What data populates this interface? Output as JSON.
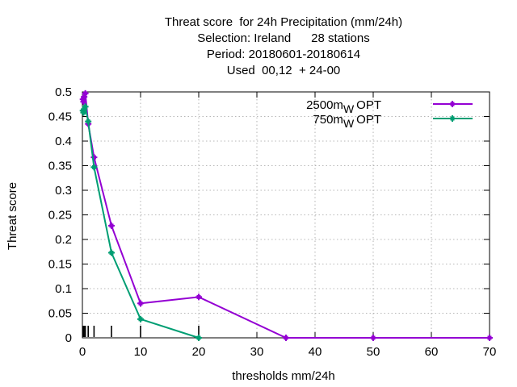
{
  "chart_data": {
    "type": "line",
    "title_lines": [
      "Threat score  for 24h Precipitation (mm/24h)",
      "Selection: Ireland      28 stations",
      "Period: 20180601-20180614",
      "Used  00,12  + 24-00"
    ],
    "xlabel": "thresholds mm/24h",
    "ylabel": "Threat score",
    "xlim": [
      0,
      70
    ],
    "ylim": [
      0,
      0.5
    ],
    "x_ticks": [
      0,
      10,
      20,
      30,
      40,
      50,
      60,
      70
    ],
    "x_tick_labels": [
      "0",
      "10",
      "20",
      "30",
      "40",
      "50",
      "60",
      "70"
    ],
    "y_ticks": [
      0,
      0.05,
      0.1,
      0.15,
      0.2,
      0.25,
      0.3,
      0.35,
      0.4,
      0.45,
      0.5
    ],
    "y_tick_labels": [
      "0",
      "0.05",
      "0.1",
      "0.15",
      "0.2",
      "0.25",
      "0.3",
      "0.35",
      "0.4",
      "0.45",
      "0.5"
    ],
    "grid": true,
    "legend_position": "top-right",
    "threshold_marks": [
      0.1,
      0.2,
      0.3,
      0.5,
      1,
      2,
      5,
      10,
      20
    ],
    "series": [
      {
        "name": "2500m",
        "subscript": "W",
        "suffix": "OPT",
        "color": "#9400d3",
        "x": [
          0.1,
          0.2,
          0.3,
          0.5,
          1,
          2,
          5,
          10,
          20,
          35,
          50,
          70
        ],
        "values": [
          0.485,
          0.48,
          0.49,
          0.497,
          0.435,
          0.367,
          0.228,
          0.07,
          0.083,
          0.0,
          0.0,
          0.0
        ]
      },
      {
        "name": "750m",
        "subscript": "W",
        "suffix": "OPT",
        "color": "#009e73",
        "x": [
          0.1,
          0.2,
          0.3,
          0.5,
          1,
          2,
          5,
          10,
          20
        ],
        "values": [
          0.462,
          0.458,
          0.465,
          0.47,
          0.44,
          0.347,
          0.173,
          0.038,
          0.0
        ]
      }
    ]
  }
}
